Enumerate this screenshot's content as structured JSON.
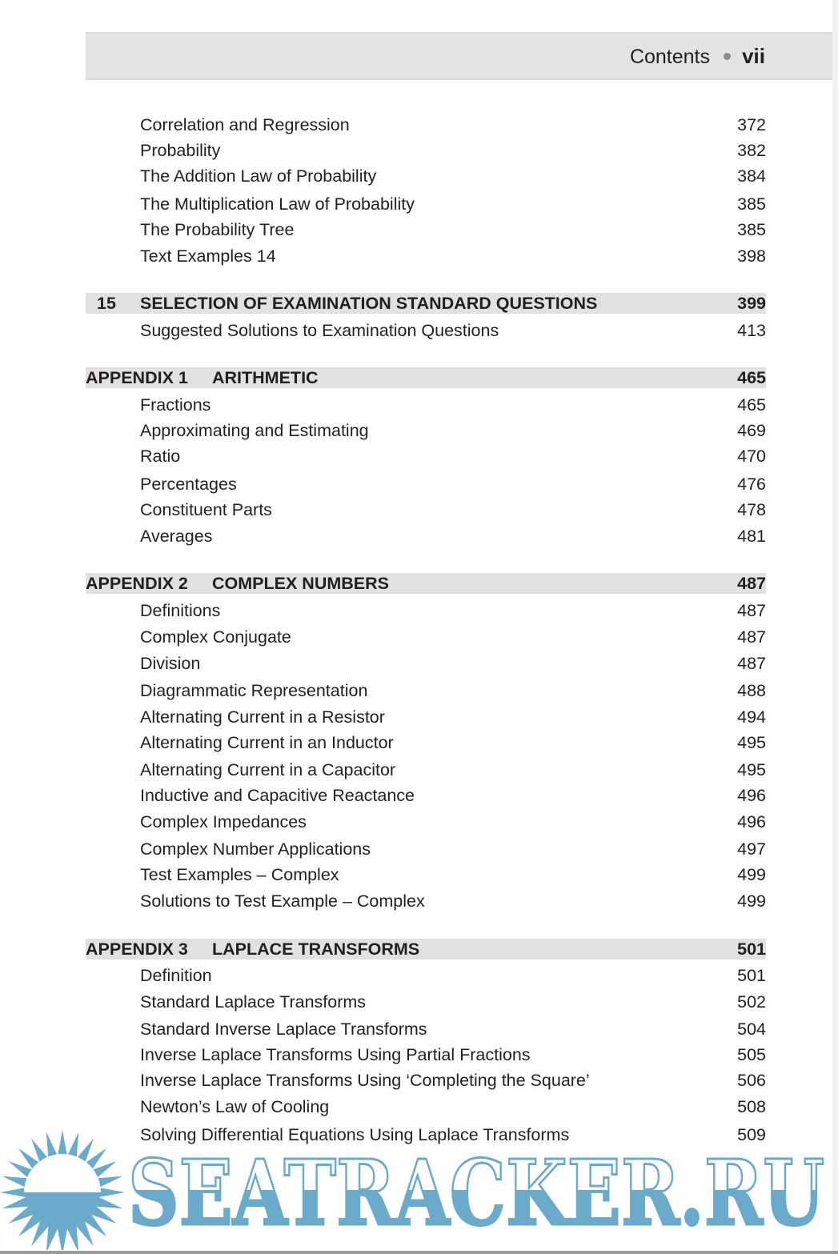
{
  "header": {
    "title": "Contents",
    "page": "vii"
  },
  "entries": [
    {
      "type": "item",
      "title": "Correlation and Regression",
      "page": "372"
    },
    {
      "type": "item",
      "title": "Probability",
      "page": "382"
    },
    {
      "type": "item",
      "title": "The Addition Law of Probability",
      "page": "384"
    },
    {
      "type": "item",
      "title": "The Multiplication Law of Probability",
      "page": "385"
    },
    {
      "type": "item",
      "title": "The Probability Tree",
      "page": "385"
    },
    {
      "type": "item",
      "title": "Text Examples 14",
      "page": "398"
    },
    {
      "type": "chapter",
      "number": "15",
      "title": "SELECTION OF EXAMINATION STANDARD QUESTIONS",
      "page": "399"
    },
    {
      "type": "item",
      "title": "Suggested Solutions to Examination Questions",
      "page": "413"
    },
    {
      "type": "appendix",
      "label": "APPENDIX 1",
      "title": "ARITHMETIC",
      "page": "465"
    },
    {
      "type": "item",
      "title": "Fractions",
      "page": "465"
    },
    {
      "type": "item",
      "title": "Approximating and Estimating",
      "page": "469"
    },
    {
      "type": "item",
      "title": "Ratio",
      "page": "470"
    },
    {
      "type": "item",
      "title": "Percentages",
      "page": "476"
    },
    {
      "type": "item",
      "title": "Constituent Parts",
      "page": "478"
    },
    {
      "type": "item",
      "title": "Averages",
      "page": "481"
    },
    {
      "type": "appendix",
      "label": "APPENDIX 2",
      "title": "COMPLEX NUMBERS",
      "page": "487"
    },
    {
      "type": "item",
      "title": "Definitions",
      "page": "487"
    },
    {
      "type": "item",
      "title": "Complex Conjugate",
      "page": "487"
    },
    {
      "type": "item",
      "title": "Division",
      "page": "487"
    },
    {
      "type": "item",
      "title": "Diagrammatic Representation",
      "page": "488"
    },
    {
      "type": "item",
      "title": "Alternating Current in a Resistor",
      "page": "494"
    },
    {
      "type": "item",
      "title": "Alternating Current in an Inductor",
      "page": "495"
    },
    {
      "type": "item",
      "title": "Alternating Current in a Capacitor",
      "page": "495"
    },
    {
      "type": "item",
      "title": "Inductive and Capacitive Reactance",
      "page": "496"
    },
    {
      "type": "item",
      "title": "Complex Impedances",
      "page": "496"
    },
    {
      "type": "item",
      "title": "Complex Number Applications",
      "page": "497"
    },
    {
      "type": "item",
      "title": "Test Examples – Complex",
      "page": "499"
    },
    {
      "type": "item",
      "title": "Solutions to Test Example – Complex",
      "page": "499"
    },
    {
      "type": "appendix",
      "label": "APPENDIX 3",
      "title": "LAPLACE TRANSFORMS",
      "page": "501"
    },
    {
      "type": "item",
      "title": "Definition",
      "page": "501"
    },
    {
      "type": "item",
      "title": "Standard Laplace Transforms",
      "page": "502"
    },
    {
      "type": "item",
      "title": "Standard Inverse Laplace Transforms",
      "page": "504"
    },
    {
      "type": "item",
      "title": "Inverse Laplace Transforms Using Partial Fractions",
      "page": "505"
    },
    {
      "type": "item",
      "title": "Inverse Laplace Transforms Using ‘Completing the Square’",
      "page": "506"
    },
    {
      "type": "item",
      "title": "Newton’s Law of Cooling",
      "page": "508"
    },
    {
      "type": "item",
      "title": "Solving Differential Equations Using Laplace Transforms",
      "page": "509"
    }
  ],
  "watermark": {
    "text": "SEATRACKER.RU",
    "color": "#6aaacb"
  },
  "colors": {
    "header_band": "#e1e3e5",
    "section_band": "#dfe1e3",
    "text": "#231f20"
  }
}
